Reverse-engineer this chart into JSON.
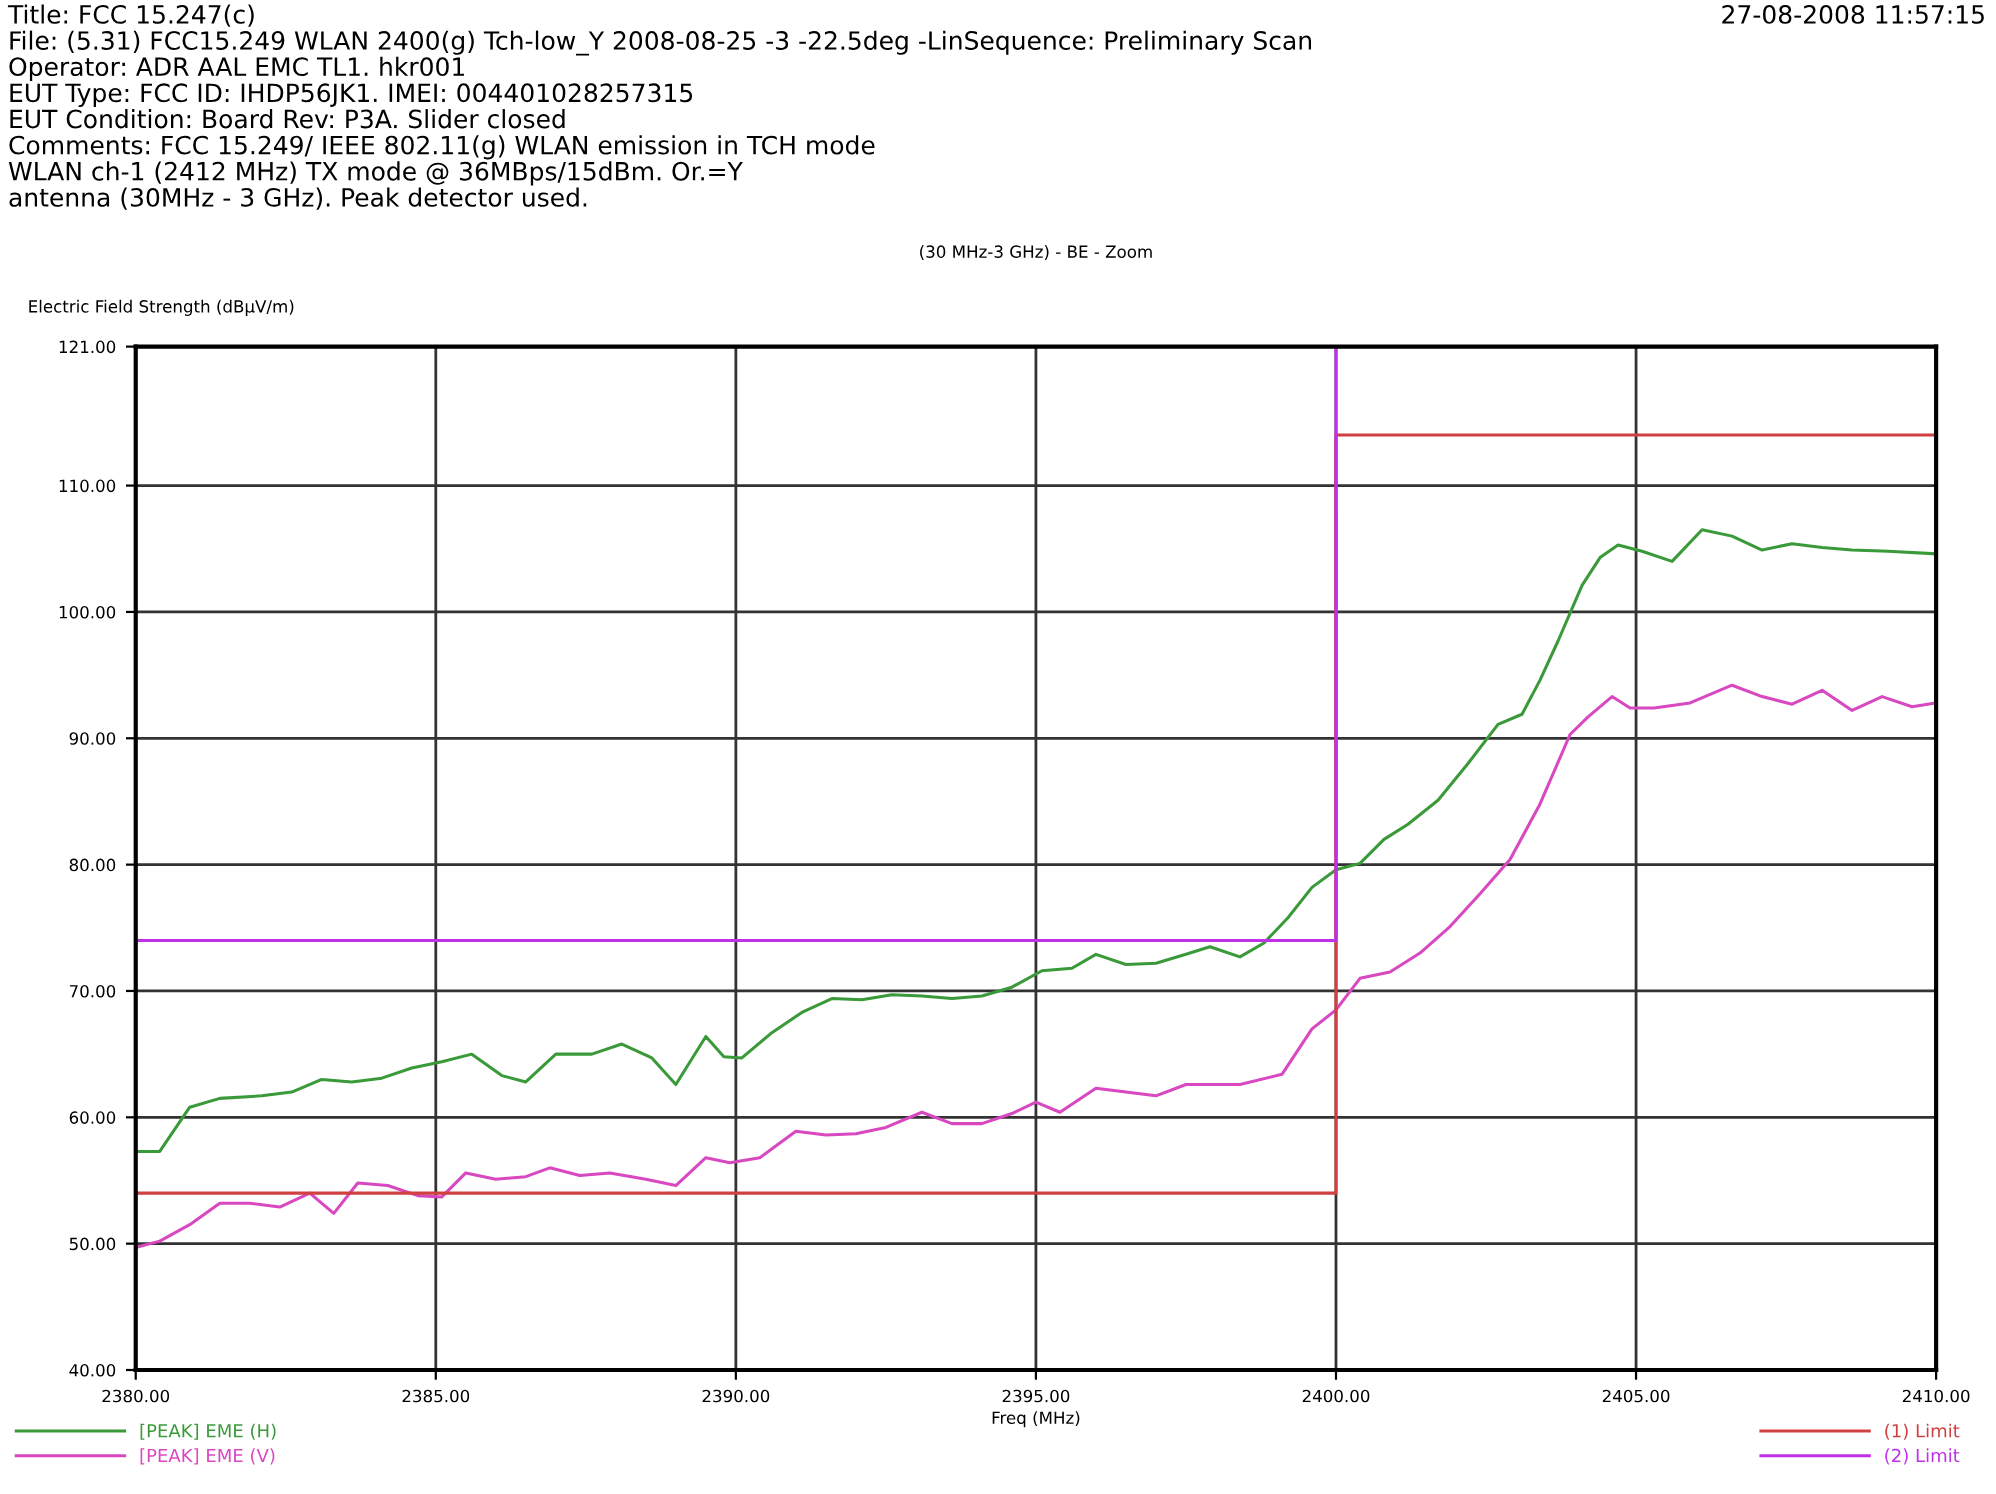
{
  "chart_data": {
    "type": "line",
    "title": "(30 MHz-3 GHz) - BE - Zoom",
    "xlabel": "Freq (MHz)",
    "ylabel": "Electric Field Strength (dBµV/m)",
    "annotations": [
      "27-08-2008 11:57:15",
      "Title: FCC 15.247(c)",
      "File: (5.31) FCC15.249 WLAN 2400(g) Tch-low_Y 2008-08-25 -3 -22.5deg -LinSequence: Preliminary Scan",
      "Operator: ADR AAL EMC TL1. hkr001",
      "EUT Type: FCC ID: IHDP56JK1. IMEI: 004401028257315",
      "EUT Condition: Board Rev: P3A. Slider closed",
      "Comments: FCC 15.249/ IEEE 802.11(g) WLAN emission in TCH mode",
      "WLAN ch-1 (2412 MHz) TX mode @ 36MBps/15dBm. Or.=Y",
      "antenna (30MHz - 3 GHz). Peak detector used."
    ],
    "xlim": [
      2380,
      2410
    ],
    "xticks": [
      {
        "value": 2380,
        "label": "2380.00"
      },
      {
        "value": 2385,
        "label": "2385.00"
      },
      {
        "value": 2390,
        "label": "2390.00"
      },
      {
        "value": 2395,
        "label": "2395.00"
      },
      {
        "value": 2400,
        "label": "2400.00"
      },
      {
        "value": 2405,
        "label": "2405.00"
      },
      {
        "value": 2410,
        "label": "2410.00"
      }
    ],
    "ylim": [
      40,
      121
    ],
    "yticks": [
      {
        "value": 40,
        "label": "40.00"
      },
      {
        "value": 50,
        "label": "50.00"
      },
      {
        "value": 60,
        "label": "60.00"
      },
      {
        "value": 70,
        "label": "70.00"
      },
      {
        "value": 80,
        "label": "80.00"
      },
      {
        "value": 90,
        "label": "90.00"
      },
      {
        "value": 100,
        "label": "100.00"
      },
      {
        "value": 110,
        "label": "110.00"
      },
      {
        "value": 121,
        "label": "121.00"
      }
    ],
    "grid": true,
    "legend": "bottom",
    "series": [
      {
        "name": "[PEAK] EME (H)",
        "color": "#3a9a3a",
        "x": [
          2380,
          2380.4,
          2380.9,
          2381.4,
          2382.1,
          2382.6,
          2383.1,
          2383.6,
          2384.1,
          2384.6,
          2385.1,
          2385.6,
          2386.1,
          2386.5,
          2387.0,
          2387.6,
          2388.1,
          2388.6,
          2389.0,
          2389.5,
          2389.8,
          2390.1,
          2390.6,
          2391.1,
          2391.6,
          2392.1,
          2392.6,
          2393.1,
          2393.6,
          2394.1,
          2394.6,
          2395.1,
          2395.6,
          2396.0,
          2396.5,
          2397.0,
          2397.5,
          2397.9,
          2398.4,
          2398.8,
          2399.2,
          2399.6,
          2400.0,
          2400.4,
          2400.8,
          2401.2,
          2401.7,
          2402.2,
          2402.7,
          2403.1,
          2403.4,
          2403.7,
          2404.1,
          2404.4,
          2404.7,
          2405.1,
          2405.6,
          2406.1,
          2406.6,
          2407.1,
          2407.6,
          2408.1,
          2408.6,
          2409.2,
          2410.0
        ],
        "values": [
          57.3,
          57.3,
          60.8,
          61.5,
          61.7,
          62,
          63,
          62.8,
          63.1,
          63.9,
          64.4,
          65,
          63.3,
          62.8,
          65,
          65,
          65.8,
          64.7,
          62.6,
          66.4,
          64.8,
          64.7,
          66.7,
          68.3,
          69.4,
          69.3,
          69.7,
          69.6,
          69.4,
          69.6,
          70.3,
          71.6,
          71.8,
          72.9,
          72.1,
          72.2,
          72.9,
          73.5,
          72.7,
          73.8,
          75.8,
          78.2,
          79.6,
          80.1,
          82,
          83.2,
          85.1,
          88,
          91.1,
          91.9,
          94.6,
          97.7,
          102.1,
          104.3,
          105.3,
          104.8,
          104,
          106.5,
          106,
          104.9,
          105.4,
          105.1,
          104.9,
          104.8,
          104.6
        ]
      },
      {
        "name": "[PEAK] EME (V)",
        "color": "#d848c0",
        "x": [
          2380,
          2380.4,
          2380.9,
          2381.4,
          2381.9,
          2382.4,
          2382.9,
          2383.3,
          2383.7,
          2384.2,
          2384.7,
          2385.1,
          2385.5,
          2386.0,
          2386.5,
          2386.9,
          2387.4,
          2387.9,
          2388.5,
          2389.0,
          2389.5,
          2389.9,
          2390.4,
          2391.0,
          2391.5,
          2392.0,
          2392.5,
          2393.1,
          2393.6,
          2394.1,
          2394.6,
          2395.0,
          2395.4,
          2396.0,
          2396.5,
          2397.0,
          2397.5,
          2397.9,
          2398.4,
          2399.1,
          2399.6,
          2400.0,
          2400.4,
          2400.9,
          2401.4,
          2401.9,
          2402.4,
          2402.9,
          2403.4,
          2403.9,
          2404.2,
          2404.6,
          2404.9,
          2405.3,
          2405.9,
          2406.6,
          2407.1,
          2407.6,
          2408.1,
          2408.6,
          2409.1,
          2409.6,
          2410.0
        ],
        "values": [
          49.7,
          50.2,
          51.5,
          53.2,
          53.2,
          52.9,
          54,
          52.4,
          54.8,
          54.6,
          53.8,
          53.7,
          55.6,
          55.1,
          55.3,
          56,
          55.4,
          55.6,
          55.1,
          54.6,
          56.8,
          56.4,
          56.8,
          58.9,
          58.6,
          58.7,
          59.2,
          60.4,
          59.5,
          59.5,
          60.3,
          61.2,
          60.4,
          62.3,
          62,
          61.7,
          62.6,
          62.6,
          62.6,
          63.4,
          67,
          68.5,
          71,
          71.5,
          73,
          75.1,
          77.7,
          80.4,
          84.8,
          90.3,
          91.7,
          93.3,
          92.4,
          92.4,
          92.8,
          94.2,
          93.3,
          92.7,
          93.8,
          92.2,
          93.3,
          92.5,
          92.8
        ]
      },
      {
        "name": "(1) Limit",
        "color": "#d04040",
        "x": [
          2380,
          2400,
          2400,
          2410
        ],
        "values": [
          54,
          54,
          114,
          114
        ]
      },
      {
        "name": "(2) Limit",
        "color": "#c030e8",
        "x": [
          2380,
          2400,
          2400
        ],
        "values": [
          74,
          74,
          121
        ]
      }
    ]
  }
}
